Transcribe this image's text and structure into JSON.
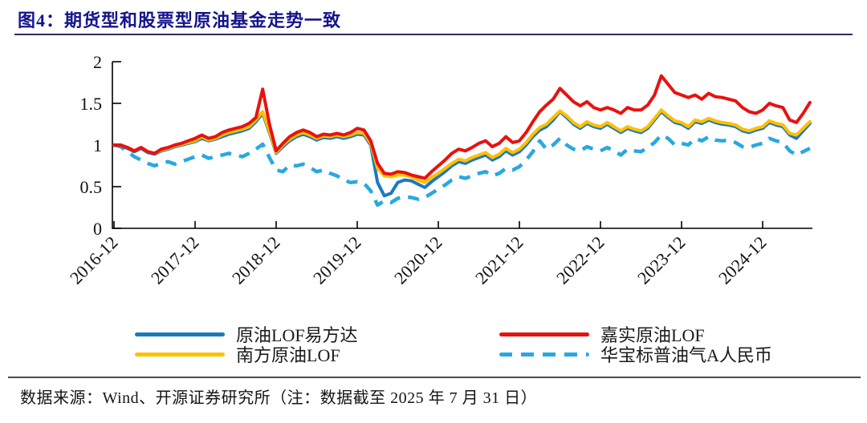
{
  "figure": {
    "source_note": "数据来源：Wind、开源证券研究所（注：数据截至 2025 年 7 月 31 日）"
  },
  "chart_data": {
    "type": "line",
    "title": "图4：期货型和股票型原油基金走势一致",
    "x_start": "2016-12",
    "x_end": "2025-07",
    "x_frequency": "monthly",
    "x_tick_labels": [
      "2016-12",
      "2017-12",
      "2018-12",
      "2019-12",
      "2020-12",
      "2021-12",
      "2022-12",
      "2023-12",
      "2024-12"
    ],
    "x_months_per_tick": 12,
    "ylim": [
      0,
      2
    ],
    "y_ticks": [
      "0",
      "0.5",
      "1",
      "1.5",
      "2"
    ],
    "grid": false,
    "legend_position": "bottom",
    "series": [
      {
        "name": "原油LOF易方达",
        "color": "#1b79bd",
        "style": "solid",
        "values": [
          1.0,
          0.99,
          0.96,
          0.92,
          0.96,
          0.91,
          0.89,
          0.93,
          0.95,
          0.98,
          1.0,
          1.02,
          1.04,
          1.08,
          1.05,
          1.07,
          1.1,
          1.13,
          1.15,
          1.17,
          1.2,
          1.28,
          1.38,
          1.15,
          0.9,
          0.98,
          1.05,
          1.1,
          1.13,
          1.1,
          1.06,
          1.09,
          1.08,
          1.1,
          1.08,
          1.1,
          1.13,
          1.12,
          1.0,
          0.55,
          0.39,
          0.42,
          0.55,
          0.58,
          0.57,
          0.53,
          0.49,
          0.56,
          0.62,
          0.68,
          0.75,
          0.8,
          0.78,
          0.82,
          0.85,
          0.88,
          0.82,
          0.86,
          0.93,
          0.88,
          0.92,
          1.0,
          1.1,
          1.18,
          1.22,
          1.3,
          1.4,
          1.33,
          1.25,
          1.2,
          1.26,
          1.22,
          1.2,
          1.25,
          1.2,
          1.15,
          1.2,
          1.17,
          1.15,
          1.2,
          1.3,
          1.4,
          1.33,
          1.27,
          1.25,
          1.2,
          1.28,
          1.26,
          1.3,
          1.27,
          1.25,
          1.24,
          1.22,
          1.17,
          1.15,
          1.18,
          1.2,
          1.27,
          1.24,
          1.22,
          1.12,
          1.08,
          1.17,
          1.26
        ]
      },
      {
        "name": "南方原油LOF",
        "color": "#ffc000",
        "style": "solid",
        "values": [
          1.0,
          1.0,
          0.97,
          0.93,
          0.97,
          0.92,
          0.9,
          0.94,
          0.96,
          0.99,
          1.01,
          1.03,
          1.05,
          1.1,
          1.06,
          1.08,
          1.12,
          1.15,
          1.17,
          1.19,
          1.22,
          1.3,
          1.4,
          1.17,
          0.91,
          1.0,
          1.07,
          1.12,
          1.15,
          1.12,
          1.08,
          1.11,
          1.1,
          1.12,
          1.1,
          1.12,
          1.15,
          1.14,
          1.02,
          0.72,
          0.63,
          0.62,
          0.64,
          0.64,
          0.62,
          0.58,
          0.55,
          0.61,
          0.66,
          0.72,
          0.78,
          0.83,
          0.81,
          0.85,
          0.88,
          0.91,
          0.85,
          0.89,
          0.96,
          0.91,
          0.95,
          1.03,
          1.13,
          1.21,
          1.25,
          1.33,
          1.41,
          1.35,
          1.27,
          1.22,
          1.28,
          1.24,
          1.22,
          1.27,
          1.22,
          1.17,
          1.22,
          1.19,
          1.17,
          1.22,
          1.32,
          1.42,
          1.35,
          1.29,
          1.27,
          1.22,
          1.3,
          1.28,
          1.32,
          1.29,
          1.27,
          1.26,
          1.24,
          1.19,
          1.17,
          1.2,
          1.22,
          1.29,
          1.26,
          1.24,
          1.14,
          1.12,
          1.2,
          1.28
        ]
      },
      {
        "name": "嘉实原油LOF",
        "color": "#e8120f",
        "style": "solid",
        "values": [
          1.0,
          1.0,
          0.97,
          0.93,
          0.97,
          0.92,
          0.9,
          0.95,
          0.97,
          1.0,
          1.02,
          1.05,
          1.08,
          1.12,
          1.08,
          1.1,
          1.15,
          1.18,
          1.2,
          1.22,
          1.26,
          1.33,
          1.67,
          1.25,
          0.93,
          1.02,
          1.1,
          1.15,
          1.18,
          1.15,
          1.1,
          1.13,
          1.12,
          1.14,
          1.12,
          1.15,
          1.2,
          1.18,
          1.05,
          0.78,
          0.66,
          0.65,
          0.68,
          0.67,
          0.64,
          0.62,
          0.6,
          0.68,
          0.75,
          0.82,
          0.9,
          0.95,
          0.93,
          0.97,
          1.02,
          1.05,
          0.98,
          1.02,
          1.1,
          1.03,
          1.05,
          1.15,
          1.28,
          1.4,
          1.48,
          1.55,
          1.68,
          1.6,
          1.52,
          1.47,
          1.52,
          1.45,
          1.42,
          1.45,
          1.42,
          1.38,
          1.45,
          1.42,
          1.42,
          1.48,
          1.6,
          1.83,
          1.73,
          1.63,
          1.6,
          1.57,
          1.6,
          1.55,
          1.62,
          1.58,
          1.57,
          1.55,
          1.53,
          1.45,
          1.4,
          1.38,
          1.42,
          1.5,
          1.47,
          1.45,
          1.3,
          1.27,
          1.38,
          1.51
        ]
      },
      {
        "name": "华宝标普油气A人民币",
        "color": "#29a8e0",
        "style": "dashed",
        "values": [
          1.0,
          0.98,
          0.92,
          0.86,
          0.82,
          0.78,
          0.75,
          0.78,
          0.8,
          0.77,
          0.8,
          0.83,
          0.86,
          0.88,
          0.84,
          0.86,
          0.88,
          0.9,
          0.88,
          0.86,
          0.9,
          0.95,
          1.01,
          0.85,
          0.7,
          0.68,
          0.76,
          0.75,
          0.77,
          0.73,
          0.68,
          0.7,
          0.66,
          0.63,
          0.58,
          0.55,
          0.56,
          0.54,
          0.45,
          0.28,
          0.33,
          0.31,
          0.36,
          0.38,
          0.37,
          0.35,
          0.37,
          0.42,
          0.47,
          0.52,
          0.58,
          0.62,
          0.6,
          0.63,
          0.66,
          0.68,
          0.63,
          0.66,
          0.72,
          0.7,
          0.74,
          0.82,
          0.92,
          1.05,
          0.95,
          1.0,
          1.08,
          1.0,
          0.95,
          0.93,
          0.98,
          0.95,
          0.93,
          0.97,
          0.93,
          0.88,
          0.95,
          0.93,
          0.92,
          0.97,
          1.03,
          1.12,
          1.08,
          1.0,
          1.02,
          1.0,
          1.08,
          1.05,
          1.1,
          1.06,
          1.05,
          1.06,
          1.03,
          0.98,
          0.97,
          1.0,
          1.02,
          1.08,
          1.05,
          1.03,
          0.93,
          0.88,
          0.92,
          0.96
        ]
      }
    ]
  }
}
